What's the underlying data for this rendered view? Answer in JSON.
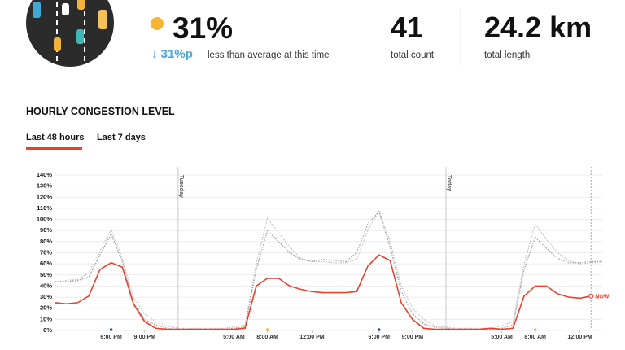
{
  "summary": {
    "level": "31%",
    "change": "↓ 31%p",
    "change_text": "less than average at this time",
    "count": "41",
    "count_label": "total count",
    "length": "24.2 km",
    "length_label": "total length"
  },
  "section_title": "HOURLY CONGESTION LEVEL",
  "tabs": [
    "Last 48 hours",
    "Last 7 days"
  ],
  "chart_data": {
    "type": "line",
    "x": [
      -11,
      -10,
      -9,
      -8,
      -7,
      -6,
      -5,
      -4,
      -3,
      -2,
      -1,
      0,
      1,
      2,
      3,
      4,
      5,
      6,
      7,
      8,
      9,
      10,
      11,
      12,
      13,
      14,
      15,
      16,
      17,
      18,
      19,
      20,
      21,
      22,
      23,
      24,
      25,
      26,
      27,
      28,
      29,
      30,
      31,
      32,
      33,
      34,
      35,
      36,
      37,
      38
    ],
    "xlim": [
      -11,
      38
    ],
    "xticks": [
      {
        "value": -6,
        "label": "6:00 PM"
      },
      {
        "value": -3,
        "label": "9:00 PM"
      },
      {
        "value": 5,
        "label": "5:00 AM"
      },
      {
        "value": 8,
        "label": "8:00 AM"
      },
      {
        "value": 12,
        "label": "12:00 PM"
      },
      {
        "value": 18,
        "label": "6:00 PM"
      },
      {
        "value": 21,
        "label": "9:00 PM"
      },
      {
        "value": 29,
        "label": "5:00 AM"
      },
      {
        "value": 32,
        "label": "8:00 AM"
      },
      {
        "value": 36,
        "label": "12:00 PM"
      }
    ],
    "ylim": [
      0,
      140
    ],
    "yticks": [
      {
        "value": 0,
        "label": "0%"
      },
      {
        "value": 10,
        "label": "10%"
      },
      {
        "value": 20,
        "label": "20%"
      },
      {
        "value": 30,
        "label": "30%"
      },
      {
        "value": 40,
        "label": "40%"
      },
      {
        "value": 50,
        "label": "50%"
      },
      {
        "value": 60,
        "label": "60%"
      },
      {
        "value": 70,
        "label": "70%"
      },
      {
        "value": 80,
        "label": "80%"
      },
      {
        "value": 90,
        "label": "90%"
      },
      {
        "value": 100,
        "label": "100%"
      },
      {
        "value": 110,
        "label": "110%"
      },
      {
        "value": 120,
        "label": "120%"
      },
      {
        "value": 130,
        "label": "130%"
      },
      {
        "value": 140,
        "label": "140%"
      }
    ],
    "grid": true,
    "series": [
      {
        "color": "#bdbdbd",
        "style": "dotted",
        "values": [
          44,
          45,
          46,
          52,
          72,
          91,
          65,
          30,
          15,
          8,
          4,
          2,
          2,
          2,
          2,
          2,
          3,
          5,
          60,
          101,
          88,
          75,
          65,
          62,
          62,
          61,
          61,
          64,
          90,
          108,
          80,
          40,
          20,
          10,
          4,
          3,
          2,
          2,
          2,
          2,
          4,
          8,
          60,
          96,
          82,
          70,
          63,
          60,
          61,
          62
        ]
      },
      {
        "color": "#9a9a9a",
        "style": "dotted",
        "values": [
          44,
          44,
          45,
          48,
          68,
          87,
          62,
          25,
          10,
          5,
          2,
          1,
          1,
          1,
          1,
          1,
          2,
          3,
          55,
          90,
          80,
          70,
          64,
          62,
          64,
          63,
          62,
          70,
          96,
          107,
          75,
          35,
          15,
          6,
          3,
          2,
          1,
          1,
          1,
          1,
          2,
          5,
          55,
          84,
          74,
          65,
          61,
          61,
          62,
          62
        ]
      },
      {
        "color": "#e8412c",
        "style": "solid",
        "values": [
          25,
          24,
          25,
          31,
          55,
          61,
          57,
          24,
          8,
          2,
          1,
          1,
          1,
          1,
          1,
          1,
          1,
          2,
          40,
          47,
          47,
          40,
          37,
          35,
          34,
          34,
          34,
          35,
          58,
          68,
          63,
          25,
          10,
          2,
          1,
          1,
          1,
          1,
          1,
          2,
          1,
          2,
          31,
          40,
          40,
          33,
          30,
          29,
          31,
          null
        ]
      }
    ],
    "annotations": [
      {
        "x": 0,
        "text": "Tuesday"
      },
      {
        "x": 24,
        "text": "Today"
      }
    ],
    "now": {
      "x": 37,
      "text": "NOW"
    }
  }
}
